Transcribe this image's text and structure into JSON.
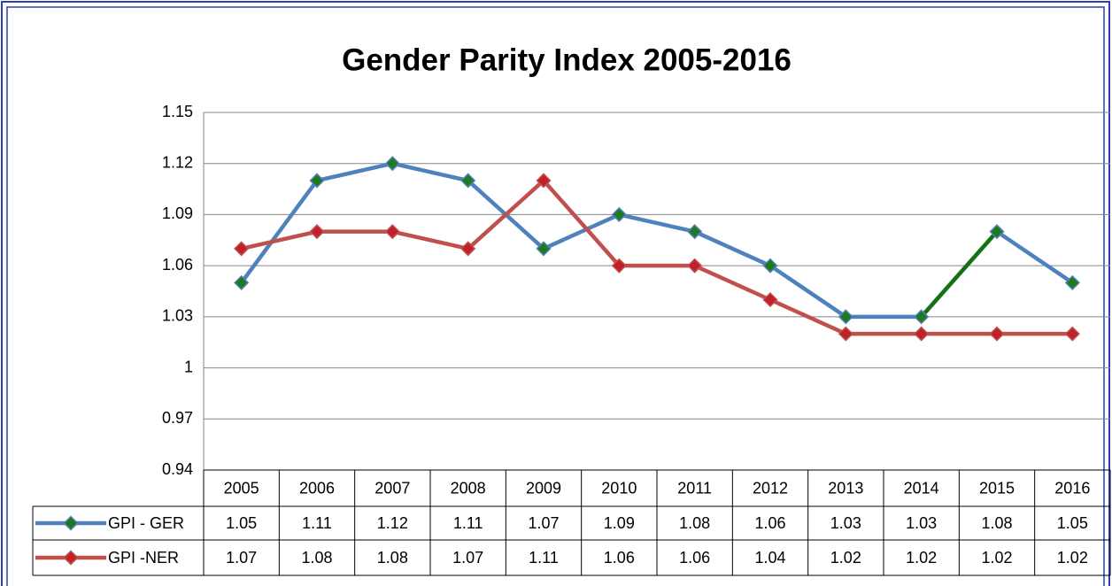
{
  "chart_data": {
    "type": "line",
    "title": "Gender Parity Index 2005-2016",
    "categories": [
      "2005",
      "2006",
      "2007",
      "2008",
      "2009",
      "2010",
      "2011",
      "2012",
      "2013",
      "2014",
      "2015",
      "2016"
    ],
    "series": [
      {
        "name": "GPI - GER",
        "color": "#4f81bd",
        "marker_color": "#1e7a1e",
        "segment_colors": [
          "#4f81bd",
          "#4f81bd",
          "#4f81bd",
          "#4f81bd",
          "#4f81bd",
          "#4f81bd",
          "#4f81bd",
          "#4f81bd",
          "#4f81bd",
          "#137313",
          "#4f81bd"
        ],
        "values": [
          1.05,
          1.11,
          1.12,
          1.11,
          1.07,
          1.09,
          1.08,
          1.06,
          1.03,
          1.03,
          1.08,
          1.05
        ]
      },
      {
        "name": "GPI -NER",
        "color": "#c0504d",
        "marker_color": "#c0202a",
        "segment_colors": [
          "#c0504d",
          "#c0504d",
          "#c0504d",
          "#c0504d",
          "#c0504d",
          "#c0504d",
          "#c0504d",
          "#c0504d",
          "#c0504d",
          "#c0504d",
          "#c0504d"
        ],
        "values": [
          1.07,
          1.08,
          1.08,
          1.07,
          1.11,
          1.06,
          1.06,
          1.04,
          1.02,
          1.02,
          1.02,
          1.02
        ]
      }
    ],
    "ylim": [
      0.94,
      1.15
    ],
    "yticks": [
      0.94,
      0.97,
      1,
      1.03,
      1.06,
      1.09,
      1.12,
      1.15
    ],
    "grid": true,
    "data_table": true
  }
}
